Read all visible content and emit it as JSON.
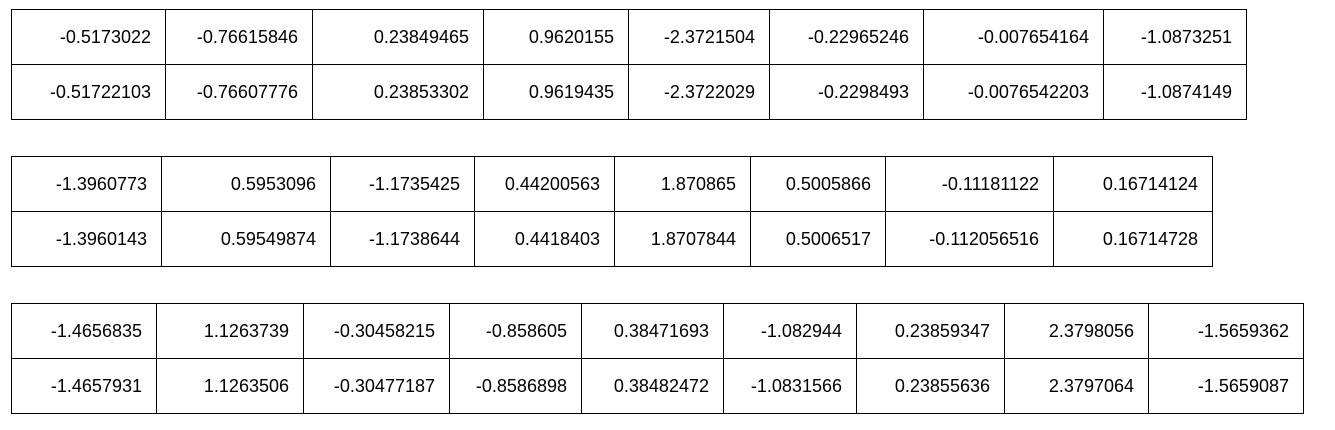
{
  "tables": [
    {
      "rows": [
        [
          "-0.5173022",
          "-0.76615846",
          "0.23849465",
          "0.9620155",
          "-2.3721504",
          "-0.22965246",
          "-0.007654164",
          "-1.0873251"
        ],
        [
          "-0.51722103",
          "-0.76607776",
          "0.23853302",
          "0.9619435",
          "-2.3722029",
          "-0.2298493",
          "-0.0076542203",
          "-1.0874149"
        ]
      ]
    },
    {
      "rows": [
        [
          "-1.3960773",
          "0.5953096",
          "-1.1735425",
          "0.44200563",
          "1.870865",
          "0.5005866",
          "-0.11181122",
          "0.16714124"
        ],
        [
          "-1.3960143",
          "0.59549874",
          "-1.1738644",
          "0.4418403",
          "1.8707844",
          "0.5006517",
          "-0.112056516",
          "0.16714728"
        ]
      ]
    },
    {
      "rows": [
        [
          "-1.4656835",
          "1.1263739",
          "-0.30458215",
          "-0.858605",
          "0.38471693",
          "-1.082944",
          "0.23859347",
          "2.3798056",
          "-1.5659362"
        ],
        [
          "-1.4657931",
          "1.1263506",
          "-0.30477187",
          "-0.8586898",
          "0.38482472",
          "-1.0831566",
          "0.23855636",
          "2.3797064",
          "-1.5659087"
        ]
      ]
    }
  ]
}
